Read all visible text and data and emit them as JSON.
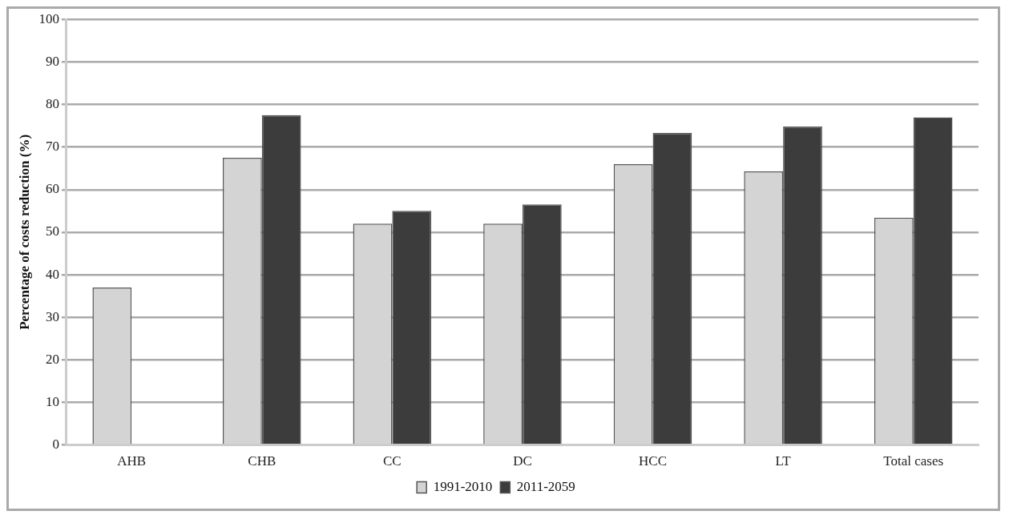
{
  "chart_data": {
    "type": "bar",
    "ylabel": "Percentage of costs reduction (%)",
    "categories": [
      "AHB",
      "CHB",
      "CC",
      "DC",
      "HCC",
      "LT",
      "Total cases"
    ],
    "series": [
      {
        "name": "1991-2010",
        "color": "#d4d4d4",
        "values": [
          37,
          67.5,
          52,
          52,
          66,
          64.3,
          53.4
        ]
      },
      {
        "name": "2011-2059",
        "color": "#3c3c3c",
        "values": [
          null,
          77.5,
          55,
          56.5,
          73.3,
          74.8,
          77
        ]
      }
    ],
    "ylim": [
      0,
      100
    ],
    "yticks": [
      0,
      10,
      20,
      30,
      40,
      50,
      60,
      70,
      80,
      90,
      100
    ],
    "grid": "y",
    "legend": "bottom"
  }
}
